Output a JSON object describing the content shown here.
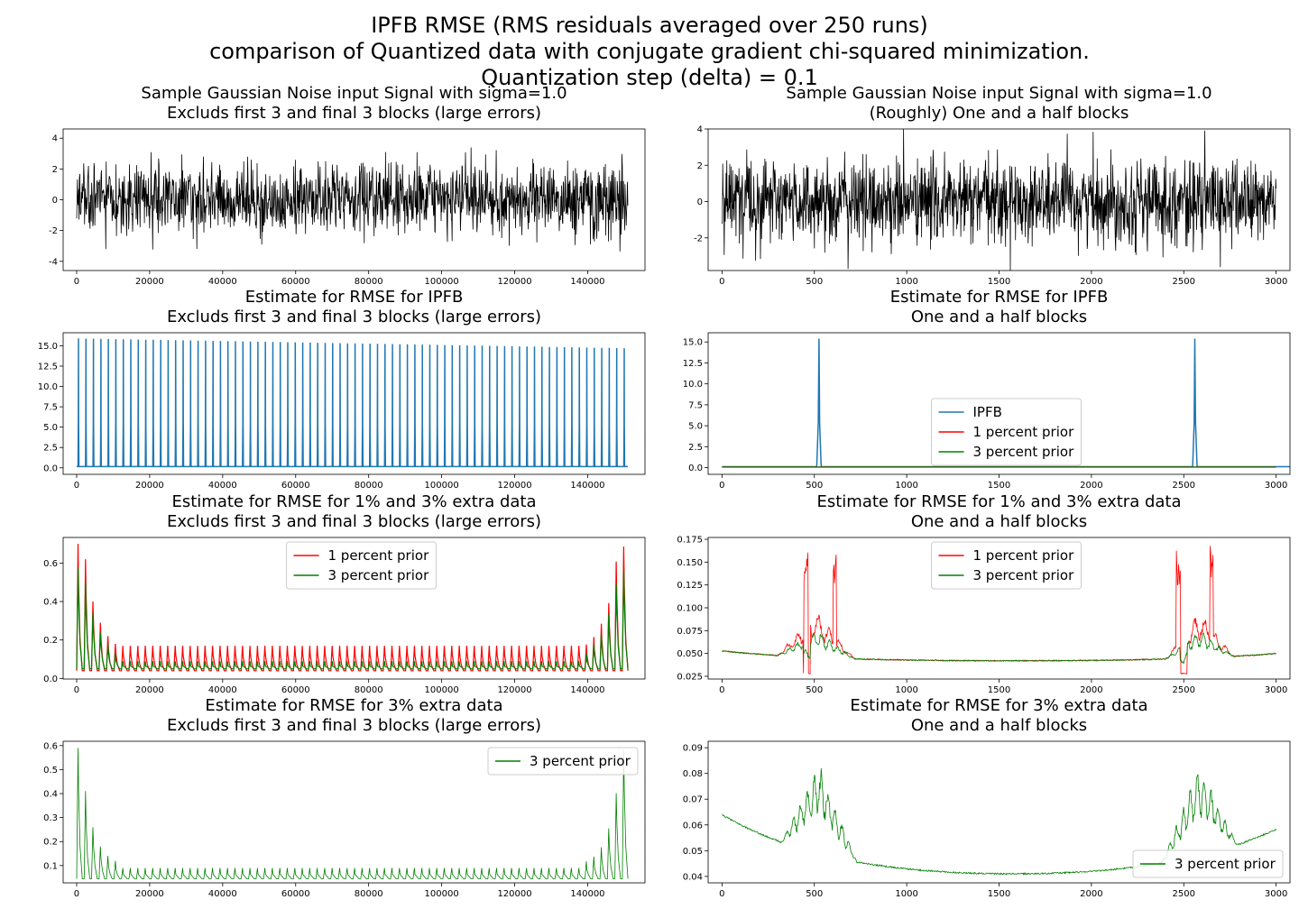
{
  "figure": {
    "suptitle": [
      "IPFB RMSE (RMS residuals averaged over 250 runs)",
      "comparison of Quantized data with conjugate gradient chi-squared minimization.",
      "Quantization step (delta) = 0.1"
    ]
  },
  "colors": {
    "ipfb": "#1f77b4",
    "one_percent": "#ff0000",
    "three_percent": "#008000",
    "signal": "#000000"
  },
  "chart_data": [
    {
      "id": "p1",
      "type": "line",
      "title": [
        "Sample Gaussian Noise input Signal with sigma=1.0",
        "Excluds first 3 and final 3 blocks (large errors)"
      ],
      "xlim": [
        -3700,
        155700
      ],
      "ylim": [
        -4.6,
        4.6
      ],
      "xticks": [
        0,
        20000,
        40000,
        60000,
        80000,
        100000,
        120000,
        140000
      ],
      "yticks": [
        -4,
        -2,
        0,
        2,
        4
      ],
      "legend": null,
      "series": [
        {
          "kind": "noise",
          "color": "signal",
          "x_range": [
            0,
            151000
          ],
          "sigma": 1.0,
          "n": 1400,
          "lw": 0.8
        }
      ]
    },
    {
      "id": "p2",
      "type": "line",
      "title": [
        "Sample Gaussian Noise input Signal with sigma=1.0",
        "(Roughly) One and a half blocks"
      ],
      "xlim": [
        -75,
        3075
      ],
      "ylim": [
        -3.8,
        4.0
      ],
      "xticks": [
        0,
        500,
        1000,
        1500,
        2000,
        2500,
        3000
      ],
      "yticks": [
        -2,
        0,
        2,
        4
      ],
      "legend": null,
      "series": [
        {
          "kind": "noise",
          "color": "signal",
          "x_range": [
            0,
            3000
          ],
          "sigma": 1.0,
          "n": 1500,
          "lw": 0.8
        }
      ]
    },
    {
      "id": "p3",
      "type": "line",
      "title": [
        "Estimate for RMSE for IPFB",
        "Excluds first 3 and final 3 blocks (large errors)"
      ],
      "xlim": [
        -3700,
        155700
      ],
      "ylim": [
        -0.8,
        16.6
      ],
      "xticks": [
        0,
        20000,
        40000,
        60000,
        80000,
        100000,
        120000,
        140000
      ],
      "yticks": [
        0.0,
        2.5,
        5.0,
        7.5,
        10.0,
        12.5,
        15.0
      ],
      "legend": null,
      "series": [
        {
          "kind": "spikes",
          "color": "ipfb",
          "x_start": 500,
          "period": 2048,
          "count": 74,
          "peak_start": 15.9,
          "peak_end": 14.7,
          "base": 0.15,
          "width": 120,
          "lw": 1.5
        }
      ]
    },
    {
      "id": "p4",
      "type": "line",
      "title": [
        "Estimate for RMSE for IPFB",
        "One and a half blocks"
      ],
      "xlim": [
        -75,
        3075
      ],
      "ylim": [
        -0.8,
        16.1
      ],
      "xticks": [
        0,
        500,
        1000,
        1500,
        2000,
        2500,
        3000
      ],
      "yticks": [
        0.0,
        2.5,
        5.0,
        7.5,
        10.0,
        12.5,
        15.0
      ],
      "legend": {
        "loc": "lower-center",
        "entries": [
          "IPFB",
          "1 percent prior",
          "3 percent prior"
        ],
        "colors": [
          "ipfb",
          "one_percent",
          "three_percent"
        ]
      },
      "series": [
        {
          "kind": "spikes",
          "color": "ipfb",
          "x_start": 525,
          "period": 2035,
          "count": 2,
          "peak_start": 15.4,
          "peak_end": 15.4,
          "base": 0.12,
          "width": 12,
          "lw": 1.5
        },
        {
          "kind": "flat",
          "color": "one_percent",
          "x_range": [
            0,
            3000
          ],
          "y": 0.08,
          "lw": 1.2
        },
        {
          "kind": "flat",
          "color": "three_percent",
          "x_range": [
            0,
            3000
          ],
          "y": 0.06,
          "lw": 1.2
        }
      ]
    },
    {
      "id": "p5",
      "type": "line",
      "title": [
        "Estimate for RMSE for 1% and 3% extra data",
        "Excluds first 3 and final 3 blocks (large errors)"
      ],
      "xlim": [
        -3700,
        155700
      ],
      "ylim": [
        -0.003,
        0.733
      ],
      "xticks": [
        0,
        20000,
        40000,
        60000,
        80000,
        100000,
        120000,
        140000
      ],
      "yticks": [
        0.0,
        0.2,
        0.4,
        0.6
      ],
      "legend": {
        "loc": "upper-center",
        "entries": [
          "1 percent prior",
          "3 percent prior"
        ],
        "colors": [
          "one_percent",
          "three_percent"
        ]
      },
      "series": [
        {
          "kind": "periodic",
          "color": "one_percent",
          "x_range": [
            0,
            151000
          ],
          "period": 2048,
          "base": 0.04,
          "peak": 0.17,
          "edge_peaks": [
            0.7,
            0.62,
            0.4,
            0.29,
            0.22,
            0.18
          ],
          "lw": 1.2
        },
        {
          "kind": "periodic",
          "color": "three_percent",
          "x_range": [
            0,
            151000
          ],
          "period": 2048,
          "base": 0.05,
          "peak": 0.09,
          "edge_peaks": [
            0.58,
            0.5,
            0.34,
            0.24,
            0.18,
            0.13
          ],
          "lw": 1.2
        }
      ]
    },
    {
      "id": "p6",
      "type": "line",
      "title": [
        "Estimate for RMSE for 1% and 3% extra data",
        "One and a half blocks"
      ],
      "xlim": [
        -75,
        3075
      ],
      "ylim": [
        0.022,
        0.177
      ],
      "xticks": [
        0,
        500,
        1000,
        1500,
        2000,
        2500,
        3000
      ],
      "yticks": [
        0.025,
        0.05,
        0.075,
        0.1,
        0.125,
        0.15,
        0.175
      ],
      "legend": {
        "loc": "upper-center",
        "entries": [
          "1 percent prior",
          "3 percent prior"
        ],
        "colors": [
          "one_percent",
          "three_percent"
        ]
      },
      "series": [
        {
          "kind": "bowl",
          "variant": "red",
          "color": "one_percent",
          "x_range": [
            0,
            3000
          ],
          "lw": 0.8
        },
        {
          "kind": "bowl",
          "variant": "green",
          "color": "three_percent",
          "x_range": [
            0,
            3000
          ],
          "lw": 0.8
        }
      ]
    },
    {
      "id": "p7",
      "type": "line",
      "title": [
        "Estimate for RMSE for 3% extra data",
        "Excluds first 3 and final 3 blocks (large errors)"
      ],
      "xlim": [
        -3700,
        155700
      ],
      "ylim": [
        0.028,
        0.618
      ],
      "xticks": [
        0,
        20000,
        40000,
        60000,
        80000,
        100000,
        120000,
        140000
      ],
      "yticks": [
        0.1,
        0.2,
        0.3,
        0.4,
        0.5,
        0.6
      ],
      "legend": {
        "loc": "upper-right",
        "entries": [
          "3 percent prior"
        ],
        "colors": [
          "three_percent"
        ]
      },
      "series": [
        {
          "kind": "periodic",
          "color": "three_percent",
          "x_range": [
            0,
            151000
          ],
          "period": 2048,
          "base": 0.045,
          "peak": 0.09,
          "edge_peaks": [
            0.59,
            0.41,
            0.26,
            0.18,
            0.14,
            0.12
          ],
          "lw": 0.8
        }
      ]
    },
    {
      "id": "p8",
      "type": "line",
      "title": [
        "Estimate for RMSE for 3% extra data",
        "One and a half blocks"
      ],
      "xlim": [
        -75,
        3075
      ],
      "ylim": [
        0.0375,
        0.0925
      ],
      "xticks": [
        0,
        500,
        1000,
        1500,
        2000,
        2500,
        3000
      ],
      "yticks": [
        0.04,
        0.05,
        0.06,
        0.07,
        0.08,
        0.09
      ],
      "legend": {
        "loc": "lower-right",
        "entries": [
          "3 percent prior"
        ],
        "colors": [
          "three_percent"
        ]
      },
      "series": [
        {
          "kind": "bowl",
          "variant": "green_only",
          "color": "three_percent",
          "x_range": [
            0,
            3000
          ],
          "lw": 0.8
        }
      ]
    }
  ]
}
